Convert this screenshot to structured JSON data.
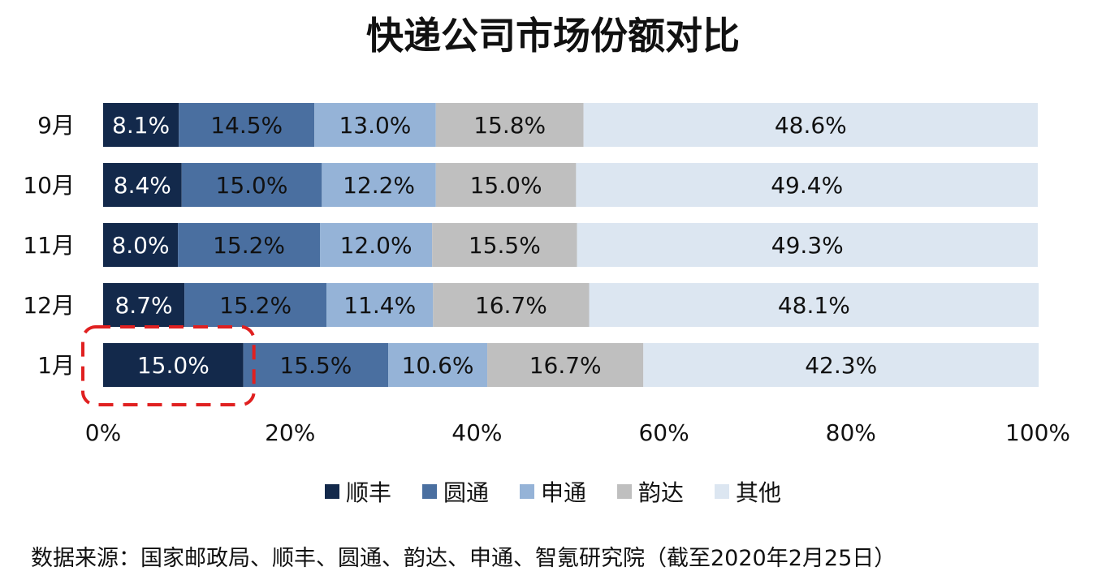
{
  "title": "快递公司市场份额对比",
  "source": "数据来源：国家邮政局、顺丰、圆通、韵达、申通、智氪研究院（截至2020年2月25日）",
  "colors": {
    "顺丰": "#13294b",
    "圆通": "#4a6fa0",
    "申通": "#95b3d7",
    "韵达": "#bfbfbf",
    "其他": "#dce6f1",
    "highlight": "#e02020"
  },
  "chart_data": {
    "type": "bar",
    "orientation": "horizontal",
    "stacked": true,
    "categories": [
      "9月",
      "10月",
      "11月",
      "12月",
      "1月"
    ],
    "series": [
      {
        "name": "顺丰",
        "values": [
          8.1,
          8.4,
          8.0,
          8.7,
          15.0
        ],
        "labels": [
          "8.1%",
          "8.4%",
          "8.0%",
          "8.7%",
          "15.0%"
        ]
      },
      {
        "name": "圆通",
        "values": [
          14.5,
          15.0,
          15.2,
          15.2,
          15.5
        ],
        "labels": [
          "14.5%",
          "15.0%",
          "15.2%",
          "15.2%",
          "15.5%"
        ]
      },
      {
        "name": "申通",
        "values": [
          13.0,
          12.2,
          12.0,
          11.4,
          10.6
        ],
        "labels": [
          "13.0%",
          "12.2%",
          "12.0%",
          "11.4%",
          "10.6%"
        ]
      },
      {
        "name": "韵达",
        "values": [
          15.8,
          15.0,
          15.5,
          16.7,
          16.7
        ],
        "labels": [
          "15.8%",
          "15.0%",
          "15.5%",
          "16.7%",
          "16.7%"
        ]
      },
      {
        "name": "其他",
        "values": [
          48.6,
          49.4,
          49.3,
          48.1,
          42.3
        ],
        "labels": [
          "48.6%",
          "49.4%",
          "49.3%",
          "48.1%",
          "42.3%"
        ]
      }
    ],
    "xticks": [
      "0%",
      "20%",
      "40%",
      "60%",
      "80%",
      "100%"
    ],
    "xlim": [
      0,
      100
    ],
    "grid": false,
    "legend": "bottom",
    "highlight": {
      "category": "1月",
      "series": "顺丰",
      "style": "red dashed rounded box"
    }
  }
}
